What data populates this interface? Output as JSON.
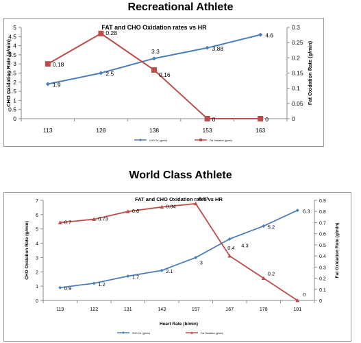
{
  "headings": {
    "top": "Recreational Athlete",
    "bottom": "World Class  Athlete"
  },
  "chart_data": [
    {
      "type": "line",
      "title": "FAT and CHO Oxidation rates vs HR",
      "xlabel": "",
      "ylabel": "CHO Oxidation Rate (g/min)",
      "y2label": "Fat Oxidation Rate (g/min)",
      "categories": [
        "113",
        "128",
        "138",
        "153",
        "163"
      ],
      "ylim": [
        0,
        5
      ],
      "yticks": [
        "0",
        "0.5",
        "1",
        "1.5",
        "2",
        "2.5",
        "3",
        "3.5",
        "4",
        "4.5",
        "5"
      ],
      "y2lim": [
        0,
        0.3
      ],
      "y2ticks": [
        "0",
        "0.05",
        "0.1",
        "0.15",
        "0.2",
        "0.25",
        "0.3"
      ],
      "grid": false,
      "legend_position": "bottom",
      "series": [
        {
          "name": "CHO Ox. (g/min)",
          "axis": "left",
          "color": "#4a7ebb",
          "marker": "diamond",
          "values": [
            1.9,
            2.5,
            3.3,
            3.88,
            4.6
          ],
          "labels": [
            "1.9",
            "2.5",
            "3.3",
            "3.88",
            "4.6"
          ]
        },
        {
          "name": "Fat Oxidation (g/min)",
          "axis": "right",
          "color": "#be4b48",
          "marker": "square",
          "values": [
            0.18,
            0.28,
            0.16,
            0,
            0
          ],
          "labels": [
            "0.18",
            "0.28",
            "0.16",
            "0",
            "0"
          ]
        }
      ]
    },
    {
      "type": "line",
      "title": "FAT and CHO Oxidation rates vs HR",
      "xlabel": "Heart Rate (b/min)",
      "ylabel": "CHO Oxidation Rate (g/min)",
      "y2label": "Fat Oxidation Rate (g/min)",
      "categories": [
        "119",
        "122",
        "131",
        "143",
        "157",
        "167",
        "178",
        "181"
      ],
      "ylim": [
        0,
        7
      ],
      "yticks": [
        "0",
        "1",
        "2",
        "3",
        "4",
        "5",
        "6",
        "7"
      ],
      "y2lim": [
        0,
        0.9
      ],
      "y2ticks": [
        "0",
        "0.1",
        "0.2",
        "0.3",
        "0.4",
        "0.5",
        "0.6",
        "0.7",
        "0.8",
        "0.9"
      ],
      "grid": false,
      "legend_position": "bottom",
      "series": [
        {
          "name": "CHO Ox. (g/min)",
          "axis": "left",
          "color": "#4a7ebb",
          "marker": "diamond",
          "values": [
            0.9,
            1.2,
            1.7,
            2.1,
            3,
            4.3,
            5.2,
            6.3
          ],
          "labels": [
            "0.9",
            "1.2",
            "1.7",
            "2.1",
            "3",
            "4.3",
            "5.2",
            "6.3"
          ]
        },
        {
          "name": "Fat Oxidation (g/min)",
          "axis": "right",
          "color": "#be4b48",
          "marker": "triangle",
          "values": [
            0.7,
            0.73,
            0.8,
            0.84,
            0.87,
            0.4,
            0.2,
            0
          ],
          "labels": [
            "0.7",
            "0.73",
            "0.8",
            "0.84",
            "0.87",
            "0.4",
            "0.2",
            "0"
          ]
        }
      ]
    }
  ]
}
